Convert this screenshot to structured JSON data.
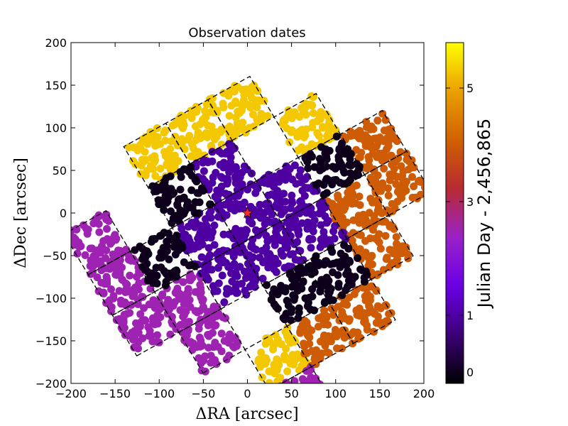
{
  "chart_data": {
    "type": "scatter",
    "title": "Observation dates",
    "xlabel": "ΔRA [arcsec]",
    "ylabel": "ΔDec [arcsec]",
    "xlim": [
      -200,
      200
    ],
    "ylim": [
      -200,
      200
    ],
    "xticks": [
      -200,
      -150,
      -100,
      -50,
      0,
      50,
      100,
      150,
      200
    ],
    "yticks": [
      -200,
      -150,
      -100,
      -50,
      0,
      50,
      100,
      150,
      200
    ],
    "xtick_labels": [
      "−200",
      "−150",
      "−100",
      "−50",
      "0",
      "50",
      "100",
      "150",
      "200"
    ],
    "ytick_labels": [
      "−200",
      "−150",
      "−100",
      "−50",
      "0",
      "50",
      "100",
      "150",
      "200"
    ],
    "field_rotation_deg": 30,
    "field_size_arcsec": 55,
    "fields": [
      {
        "u": -1,
        "v": -1,
        "day": 1.0
      },
      {
        "u": 0,
        "v": -1,
        "day": 1.0
      },
      {
        "u": 1,
        "v": -1,
        "day": 1.0
      },
      {
        "u": -1,
        "v": 0,
        "day": 1.0
      },
      {
        "u": 0,
        "v": 0,
        "day": 1.0
      },
      {
        "u": 1,
        "v": 0,
        "day": 1.0
      },
      {
        "u": 0,
        "v": 1,
        "day": 1.0
      },
      {
        "u": -2,
        "v": 0,
        "day": 0.0
      },
      {
        "u": 2,
        "v": 0,
        "day": 0.0
      },
      {
        "u": -1,
        "v": 1,
        "day": 0.0
      },
      {
        "u": 1,
        "v": -2,
        "day": 0.0
      },
      {
        "u": 0,
        "v": -2,
        "day": 0.0
      },
      {
        "u": -1,
        "v": 2,
        "day": 5.3
      },
      {
        "u": 0,
        "v": 2,
        "day": 5.3
      },
      {
        "u": 1,
        "v": 2,
        "day": 5.3
      },
      {
        "u": 2,
        "v": 1,
        "day": 5.3
      },
      {
        "u": -1,
        "v": -3,
        "day": 5.3
      },
      {
        "u": 2,
        "v": -1,
        "day": 4.0
      },
      {
        "u": 3,
        "v": -1,
        "day": 4.0
      },
      {
        "u": 3,
        "v": 0,
        "day": 4.0
      },
      {
        "u": 2,
        "v": -2,
        "day": 4.0
      },
      {
        "u": 1,
        "v": -3,
        "day": 4.0
      },
      {
        "u": 0,
        "v": -3,
        "day": 4.0
      },
      {
        "u": -3,
        "v": 1,
        "day": 2.5
      },
      {
        "u": -3,
        "v": 0,
        "day": 2.5
      },
      {
        "u": -3,
        "v": -1,
        "day": 2.5
      },
      {
        "u": -2,
        "v": -1,
        "day": 2.5
      },
      {
        "u": -2,
        "v": -2,
        "day": 2.5
      },
      {
        "u": -1,
        "v": -4,
        "day": 2.5
      }
    ],
    "target_marker": {
      "x": 0,
      "y": 0,
      "symbol": "star",
      "color": "#ff2a2a"
    },
    "colorbar": {
      "label": "Julian Day - 2,456,865",
      "range": [
        -0.2,
        5.8
      ],
      "ticks": [
        0,
        1,
        3,
        5
      ],
      "tick_labels": [
        "0",
        "1",
        "3",
        "5"
      ],
      "colormap": "gnuplot",
      "stops": [
        "#000000",
        "#3d0077",
        "#6a00e6",
        "#9a22c8",
        "#b82a32",
        "#d06000",
        "#eaa000",
        "#ffff00"
      ]
    }
  }
}
